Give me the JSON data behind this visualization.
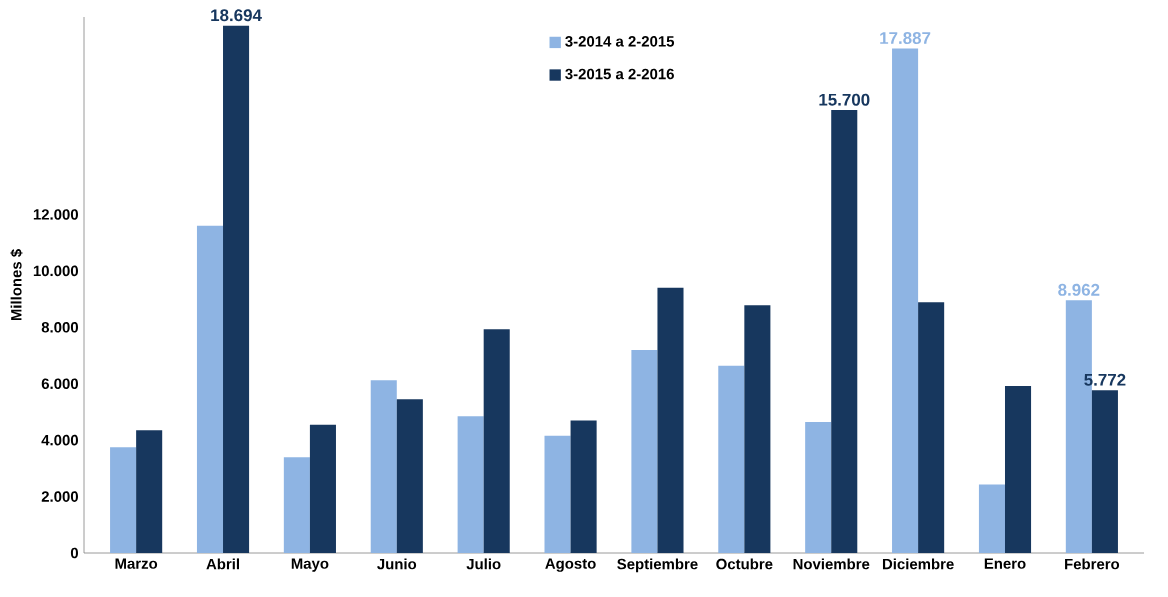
{
  "chart_data": {
    "type": "bar",
    "ylabel": "Millones $",
    "categories": [
      "Marzo",
      "Abril",
      "Mayo",
      "Junio",
      "Julio",
      "Agosto",
      "Septiembre",
      "Octubre",
      "Noviembre",
      "Diciembre",
      "Enero",
      "Febrero"
    ],
    "series": [
      {
        "name": "3-2014 a 2-2015",
        "color": "#8eb4e3",
        "values": [
          3750,
          11600,
          3390,
          6120,
          4850,
          4160,
          7200,
          6640,
          4640,
          17887,
          2430,
          8962
        ],
        "value_labels": [
          null,
          null,
          null,
          null,
          null,
          null,
          null,
          null,
          null,
          "17.887",
          null,
          "8.962"
        ]
      },
      {
        "name": "3-2015 a 2-2016",
        "color": "#17375e",
        "values": [
          4350,
          18694,
          4550,
          5450,
          7930,
          4700,
          9400,
          8780,
          15700,
          8890,
          5920,
          5772
        ],
        "value_labels": [
          null,
          "18.694",
          null,
          null,
          null,
          null,
          null,
          null,
          "15.700",
          null,
          null,
          "5.772"
        ]
      }
    ],
    "ylim": [
      0,
      19000
    ],
    "yticks": [
      0,
      {
        "value": 2000,
        "label": "2.000"
      },
      {
        "value": 4000,
        "label": "4.000"
      },
      {
        "value": 6000,
        "label": "6.000"
      },
      {
        "value": 8000,
        "label": "8.000"
      },
      {
        "value": 10000,
        "label": "10.000"
      },
      {
        "value": 12000,
        "label": "12.000"
      }
    ],
    "legend": "top",
    "grid": false
  }
}
